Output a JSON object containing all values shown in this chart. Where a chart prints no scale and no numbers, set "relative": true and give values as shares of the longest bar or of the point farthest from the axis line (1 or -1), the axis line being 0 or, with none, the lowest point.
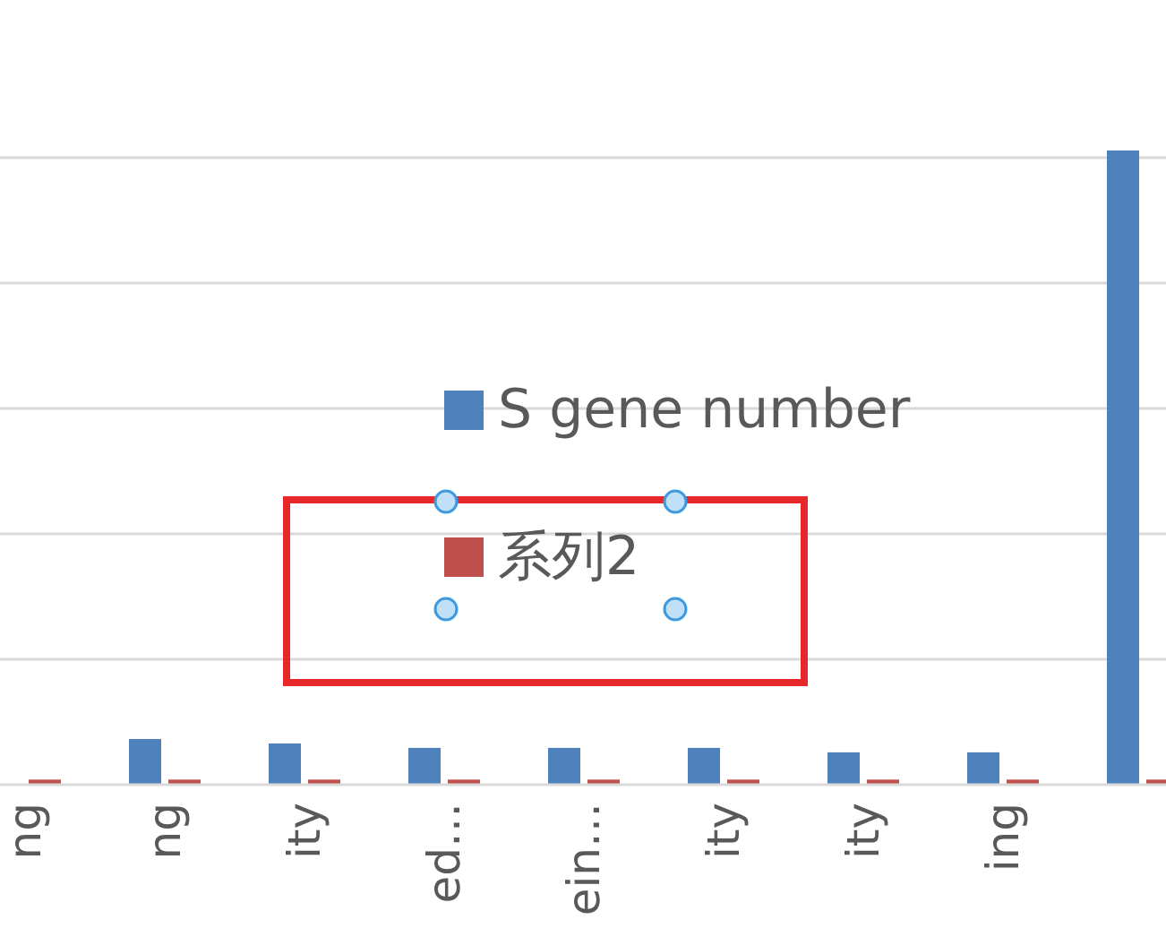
{
  "chart_data": {
    "type": "bar",
    "relative": true,
    "grid": "y",
    "legend": "center",
    "categories": [
      "ng",
      "ng",
      "ity",
      "ed…",
      "ein…",
      "ity",
      "ity",
      "ing",
      null
    ],
    "series": [
      {
        "name": "S gene number",
        "color": "#4f81bd",
        "values": [
          null,
          0.072,
          0.065,
          0.058,
          0.058,
          0.058,
          0.051,
          0.051,
          1
        ]
      },
      {
        "name": "系列2",
        "color": "#c0504d",
        "values": [
          0.008,
          0.008,
          0.008,
          0.008,
          0.008,
          0.008,
          0.008,
          0.008,
          0.008
        ]
      }
    ]
  }
}
